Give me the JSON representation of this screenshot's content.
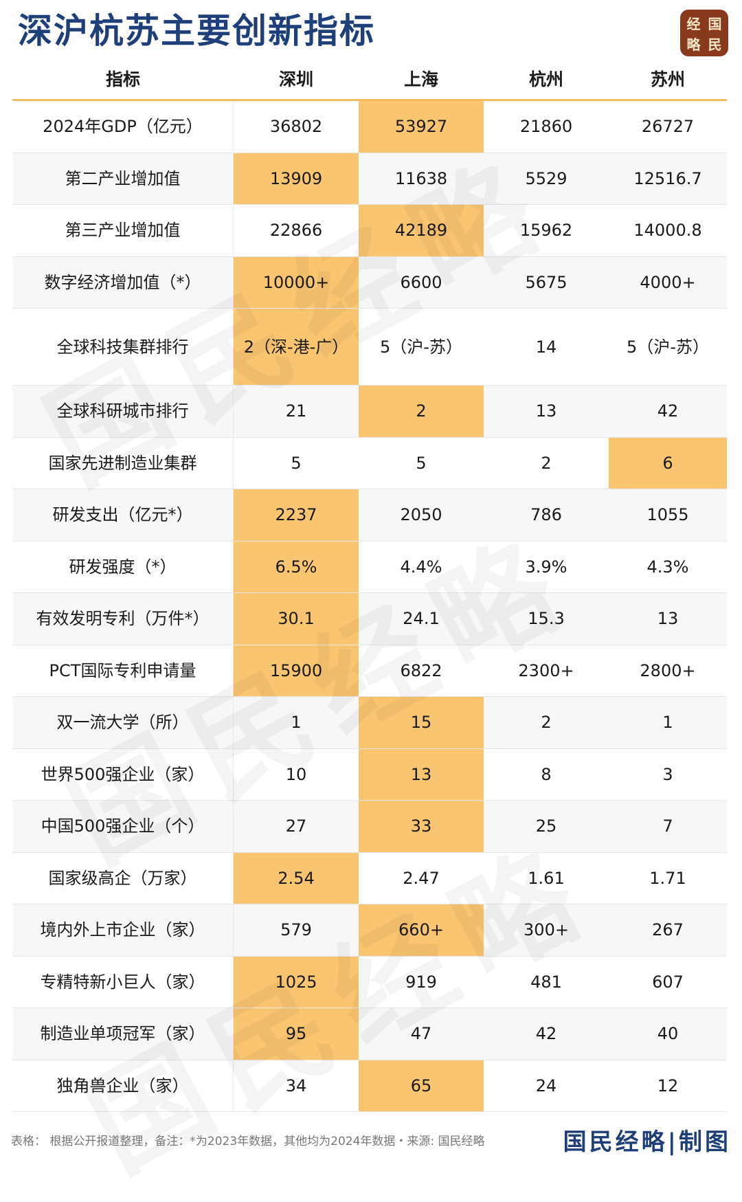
{
  "title": "深沪杭苏主要创新指标",
  "logo": [
    "经",
    "国",
    "略",
    "民"
  ],
  "watermark": "国民经略",
  "columns": [
    "指标",
    "深圳",
    "上海",
    "杭州",
    "苏州"
  ],
  "rows": [
    {
      "label": "2024年GDP（亿元）",
      "values": [
        "36802",
        "53927",
        "21860",
        "26727"
      ],
      "highlight": 1
    },
    {
      "label": "第二产业增加值",
      "values": [
        "13909",
        "11638",
        "5529",
        "12516.7"
      ],
      "highlight": 0
    },
    {
      "label": "第三产业增加值",
      "values": [
        "22866",
        "42189",
        "15962",
        "14000.8"
      ],
      "highlight": 1
    },
    {
      "label": "数字经济增加值（*）",
      "values": [
        "10000+",
        "6600",
        "5675",
        "4000+"
      ],
      "highlight": 0
    },
    {
      "label": "全球科技集群排行",
      "values": [
        "2（深-港-广）",
        "5（沪-苏）",
        "14",
        "5（沪-苏）"
      ],
      "highlight": 0
    },
    {
      "label": "全球科研城市排行",
      "values": [
        "21",
        "2",
        "13",
        "42"
      ],
      "highlight": 1
    },
    {
      "label": "国家先进制造业集群",
      "values": [
        "5",
        "5",
        "2",
        "6"
      ],
      "highlight": 3
    },
    {
      "label": "研发支出（亿元*）",
      "values": [
        "2237",
        "2050",
        "786",
        "1055"
      ],
      "highlight": 0
    },
    {
      "label": "研发强度（*）",
      "values": [
        "6.5%",
        "4.4%",
        "3.9%",
        "4.3%"
      ],
      "highlight": 0
    },
    {
      "label": "有效发明专利（万件*）",
      "values": [
        "30.1",
        "24.1",
        "15.3",
        "13"
      ],
      "highlight": 0
    },
    {
      "label": "PCT国际专利申请量",
      "values": [
        "15900",
        "6822",
        "2300+",
        "2800+"
      ],
      "highlight": 0
    },
    {
      "label": "双一流大学（所）",
      "values": [
        "1",
        "15",
        "2",
        "1"
      ],
      "highlight": 1
    },
    {
      "label": "世界500强企业（家）",
      "values": [
        "10",
        "13",
        "8",
        "3"
      ],
      "highlight": 1
    },
    {
      "label": "中国500强企业（个）",
      "values": [
        "27",
        "33",
        "25",
        "7"
      ],
      "highlight": 1
    },
    {
      "label": "国家级高企（万家）",
      "values": [
        "2.54",
        "2.47",
        "1.61",
        "1.71"
      ],
      "highlight": 0
    },
    {
      "label": "境内外上市企业（家）",
      "values": [
        "579",
        "660+",
        "300+",
        "267"
      ],
      "highlight": 1
    },
    {
      "label": "专精特新小巨人（家）",
      "values": [
        "1025",
        "919",
        "481",
        "607"
      ],
      "highlight": 0
    },
    {
      "label": "制造业单项冠军（家）",
      "values": [
        "95",
        "47",
        "42",
        "40"
      ],
      "highlight": 0
    },
    {
      "label": "独角兽企业（家）",
      "values": [
        "34",
        "65",
        "24",
        "12"
      ],
      "highlight": 1
    }
  ],
  "footer": {
    "note": "表格：  根据公开报道整理，备注：*为2023年数据，其他均为2024年数据・来源: 国民经略",
    "brand": "国民经略|制图"
  },
  "colors": {
    "title": "#1e3f7a",
    "highlight": "#f9c570",
    "header_rule": "#f0bc5e",
    "logo_bg": "#8a3a1c"
  }
}
